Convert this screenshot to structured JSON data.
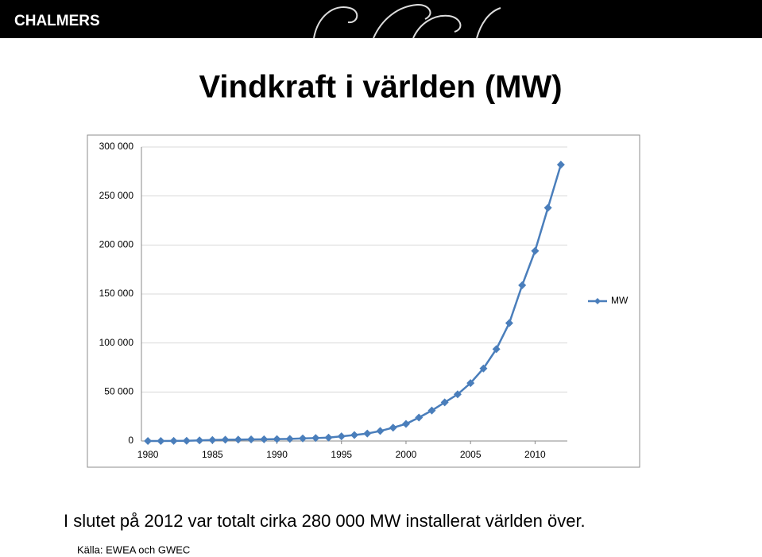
{
  "slide": {
    "logo": "CHALMERS",
    "title": "Vindkraft i världen (MW)",
    "caption": "I slutet på 2012 var totalt cirka 280 000 MW installerat världen över.",
    "source": "Källa: EWEA och GWEC"
  },
  "chart_data": {
    "type": "line",
    "x": [
      1980,
      1981,
      1982,
      1983,
      1984,
      1985,
      1986,
      1987,
      1988,
      1989,
      1990,
      1991,
      1992,
      1993,
      1994,
      1995,
      1996,
      1997,
      1998,
      1999,
      2000,
      2001,
      2002,
      2003,
      2004,
      2005,
      2006,
      2007,
      2008,
      2009,
      2010,
      2011,
      2012
    ],
    "series": [
      {
        "name": "MW",
        "color": "#4a7ebb",
        "values": [
          10,
          25,
          90,
          210,
          600,
          1020,
          1270,
          1450,
          1580,
          1730,
          1930,
          2170,
          2610,
          2990,
          3490,
          4780,
          6100,
          7600,
          10200,
          13600,
          17400,
          23900,
          31100,
          39400,
          47600,
          59100,
          74000,
          93800,
          120300,
          158900,
          194000,
          238000,
          282000
        ]
      }
    ],
    "xlim": [
      1979.5,
      2012.5
    ],
    "xticks": [
      1980,
      1985,
      1990,
      1995,
      2000,
      2005,
      2010
    ],
    "ylim": [
      0,
      300000
    ],
    "yticks": [
      0,
      {
        "value": 50000,
        "label": "50 000"
      },
      {
        "value": 100000,
        "label": "100 000"
      },
      {
        "value": 150000,
        "label": "150 000"
      },
      {
        "value": 200000,
        "label": "200 000"
      },
      {
        "value": 250000,
        "label": "250 000"
      },
      {
        "value": 300000,
        "label": "300 000"
      }
    ],
    "grid": true,
    "legend": "right"
  }
}
